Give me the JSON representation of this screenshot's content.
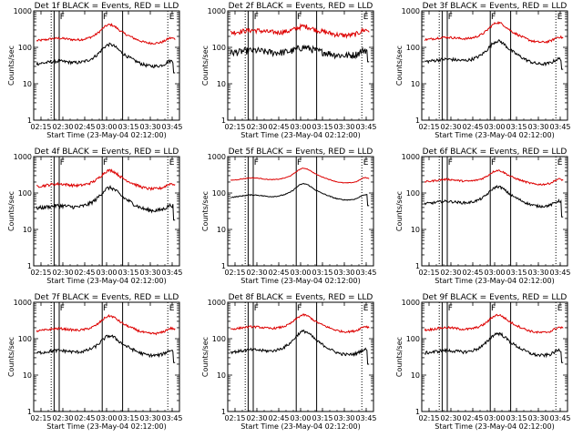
{
  "chart_data": {
    "type": "line",
    "x_tick_labels": [
      "02:15",
      "02:30",
      "02:45",
      "03:00",
      "03:15",
      "03:30",
      "03:45"
    ],
    "xlabel": "Start Time (23-May-04 02:12:00)",
    "xlim_minutes": [
      -2,
      98
    ],
    "y_tick_labels": [
      "1",
      "10",
      "100",
      "1000"
    ],
    "yscale": "log",
    "ylim": [
      1,
      1000
    ],
    "ylabel": "Counts/sec",
    "marker_labels": [
      "F",
      "F",
      "E"
    ],
    "markers": {
      "solid_minutes": [
        12,
        15.5,
        45,
        59
      ],
      "dotted_minutes": [
        10,
        90
      ],
      "label_minutes": {
        "F_left": 16,
        "F_mid": 45.5,
        "E": 91
      }
    },
    "series_colors": {
      "events": "#000000",
      "lld": "#dd0000"
    },
    "panels": [
      {
        "title": "Det 1f BLACK = Events, RED = LLD",
        "events_base": 35,
        "lld_base": 150,
        "events_peak": 120,
        "lld_peak": 420,
        "noise": 0.1,
        "events_end": 20
      },
      {
        "title": "Det 2f BLACK = Events, RED = LLD",
        "events_base": 70,
        "lld_base": 250,
        "events_peak": 100,
        "lld_peak": 380,
        "noise": 0.22,
        "events_end": 40
      },
      {
        "title": "Det 3f BLACK = Events, RED = LLD",
        "events_base": 40,
        "lld_base": 160,
        "events_peak": 150,
        "lld_peak": 480,
        "noise": 0.1,
        "events_end": 25
      },
      {
        "title": "Det 4f BLACK = Events, RED = LLD",
        "events_base": 38,
        "lld_base": 150,
        "events_peak": 140,
        "lld_peak": 420,
        "noise": 0.12,
        "events_end": 18
      },
      {
        "title": "Det 5f BLACK = Events, RED = LLD",
        "events_base": 75,
        "lld_base": 220,
        "events_peak": 180,
        "lld_peak": 480,
        "noise": 0.03,
        "events_end": 45
      },
      {
        "title": "Det 6f BLACK = Events, RED = LLD",
        "events_base": 50,
        "lld_base": 200,
        "events_peak": 150,
        "lld_peak": 420,
        "noise": 0.08,
        "events_end": 22
      },
      {
        "title": "Det 7f BLACK = Events, RED = LLD",
        "events_base": 40,
        "lld_base": 160,
        "events_peak": 120,
        "lld_peak": 420,
        "noise": 0.1,
        "events_end": 22
      },
      {
        "title": "Det 8f BLACK = Events, RED = LLD",
        "events_base": 42,
        "lld_base": 180,
        "events_peak": 160,
        "lld_peak": 450,
        "noise": 0.09,
        "events_end": 20
      },
      {
        "title": "Det 9f BLACK = Events, RED = LLD",
        "events_base": 40,
        "lld_base": 170,
        "events_peak": 140,
        "lld_peak": 450,
        "noise": 0.1,
        "events_end": 22
      }
    ]
  }
}
